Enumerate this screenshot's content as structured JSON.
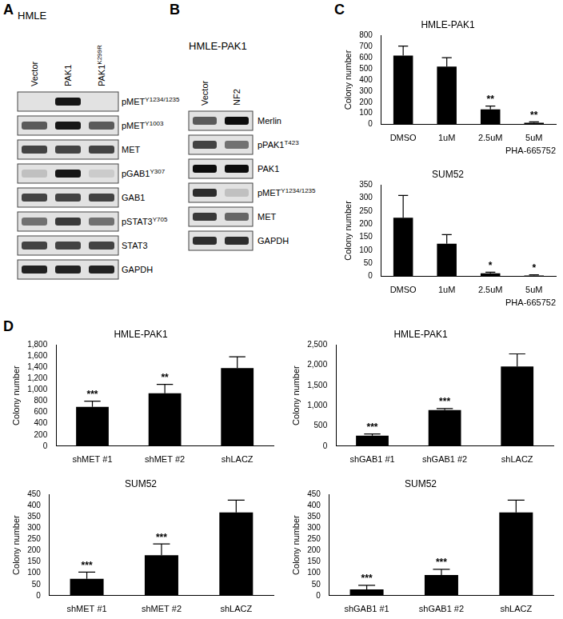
{
  "panel_labels": [
    "A",
    "B",
    "C",
    "D"
  ],
  "blots": [
    {
      "title": "HMLE",
      "lanes": [
        {
          "text": "Vector"
        },
        {
          "text": "PAK1"
        },
        {
          "text": "PAK1",
          "sup": "K299R"
        }
      ],
      "rows": [
        {
          "text": "pMET",
          "sup": "Y1234/1235",
          "bands": [
            0,
            0.9,
            0
          ]
        },
        {
          "text": "pMET",
          "sup": "Y1003",
          "bands": [
            0.6,
            0.9,
            0.6
          ]
        },
        {
          "text": "MET",
          "bands": [
            0.7,
            0.7,
            0.7
          ]
        },
        {
          "text": "pGAB1",
          "sup": "Y307",
          "bands": [
            0.15,
            0.9,
            0.1
          ]
        },
        {
          "text": "GAB1",
          "bands": [
            0.7,
            0.7,
            0.7
          ]
        },
        {
          "text": "pSTAT3",
          "sup": "Y705",
          "bands": [
            0.5,
            0.75,
            0.5
          ]
        },
        {
          "text": "STAT3",
          "bands": [
            0.7,
            0.7,
            0.7
          ]
        },
        {
          "text": "GAPDH",
          "bands": [
            0.85,
            0.85,
            0.85
          ]
        }
      ]
    },
    {
      "title": "HMLE-PAK1",
      "lanes": [
        {
          "text": "Vector"
        },
        {
          "text": "NF2"
        }
      ],
      "rows": [
        {
          "text": "Merlin",
          "bands": [
            0.6,
            0.95
          ]
        },
        {
          "text": "pPAK1",
          "sup": "T423",
          "bands": [
            0.7,
            0.5
          ]
        },
        {
          "text": "PAK1",
          "bands": [
            0.95,
            0.95
          ]
        },
        {
          "text": "pMET",
          "sup": "Y1234/1235",
          "bands": [
            0.8,
            0.15
          ]
        },
        {
          "text": "MET",
          "bands": [
            0.75,
            0.55
          ]
        },
        {
          "text": "GAPDH",
          "bands": [
            0.8,
            0.8
          ]
        }
      ]
    }
  ],
  "chart_data": [
    {
      "type": "bar",
      "title": "HMLE-PAK1",
      "categories": [
        "DMSO",
        "1uM",
        "2.5uM",
        "5uM"
      ],
      "values": [
        620,
        520,
        135,
        15
      ],
      "errors": [
        85,
        80,
        30,
        8
      ],
      "annotations": [
        null,
        null,
        "**",
        "**"
      ],
      "color": "#000000",
      "xlabel": "PHA-665752",
      "ylabel": "Colony number",
      "ylim": [
        0,
        800
      ],
      "yticks": [
        0,
        100,
        200,
        300,
        400,
        500,
        600,
        700,
        800
      ],
      "grid": false
    },
    {
      "type": "bar",
      "title": "SUM52",
      "categories": [
        "DMSO",
        "1uM",
        "2.5uM",
        "5uM"
      ],
      "values": [
        225,
        125,
        12,
        3
      ],
      "errors": [
        85,
        35,
        4,
        3
      ],
      "annotations": [
        null,
        null,
        "*",
        "*"
      ],
      "color": "#000000",
      "xlabel": "PHA-665752",
      "ylabel": "Colony number",
      "ylim": [
        0,
        350
      ],
      "yticks": [
        0,
        50,
        100,
        150,
        200,
        250,
        300,
        350
      ],
      "grid": false
    },
    {
      "type": "bar",
      "title": "HMLE-PAK1",
      "categories": [
        "shMET #1",
        "shMET #2",
        "shLACZ"
      ],
      "values": [
        700,
        940,
        1390
      ],
      "errors": [
        100,
        160,
        200
      ],
      "annotations": [
        "***",
        "**",
        null
      ],
      "color": "#000000",
      "ylabel": "Colony number",
      "ylim": [
        0,
        1800
      ],
      "yticks": [
        0,
        200,
        400,
        600,
        800,
        1000,
        1200,
        1400,
        1600,
        1800
      ],
      "grid": false
    },
    {
      "type": "bar",
      "title": "HMLE-PAK1",
      "categories": [
        "shGAB1 #1",
        "shGAB1 #2",
        "shLACZ"
      ],
      "values": [
        260,
        890,
        1970
      ],
      "errors": [
        40,
        40,
        310
      ],
      "annotations": [
        "***",
        "***",
        null
      ],
      "color": "#000000",
      "ylabel": "Colony number",
      "ylim": [
        0,
        2500
      ],
      "yticks": [
        0,
        500,
        1000,
        1500,
        2000,
        2500
      ],
      "grid": false
    },
    {
      "type": "bar",
      "title": "SUM52",
      "categories": [
        "shMET #1",
        "shMET #2",
        "shLACZ"
      ],
      "values": [
        75,
        180,
        370
      ],
      "errors": [
        30,
        50,
        55
      ],
      "annotations": [
        "***",
        "***",
        null
      ],
      "color": "#000000",
      "ylabel": "Colony number",
      "ylim": [
        0,
        450
      ],
      "yticks": [
        0,
        50,
        100,
        150,
        200,
        250,
        300,
        350,
        400,
        450
      ],
      "grid": false
    },
    {
      "type": "bar",
      "title": "SUM52",
      "categories": [
        "shGAB1 #1",
        "shGAB1 #2",
        "shLACZ"
      ],
      "values": [
        28,
        92,
        370
      ],
      "errors": [
        18,
        25,
        55
      ],
      "annotations": [
        "***",
        "***",
        null
      ],
      "color": "#000000",
      "ylabel": "Colony number",
      "ylim": [
        0,
        450
      ],
      "yticks": [
        0,
        50,
        100,
        150,
        200,
        250,
        300,
        350,
        400,
        450
      ],
      "grid": false
    }
  ]
}
